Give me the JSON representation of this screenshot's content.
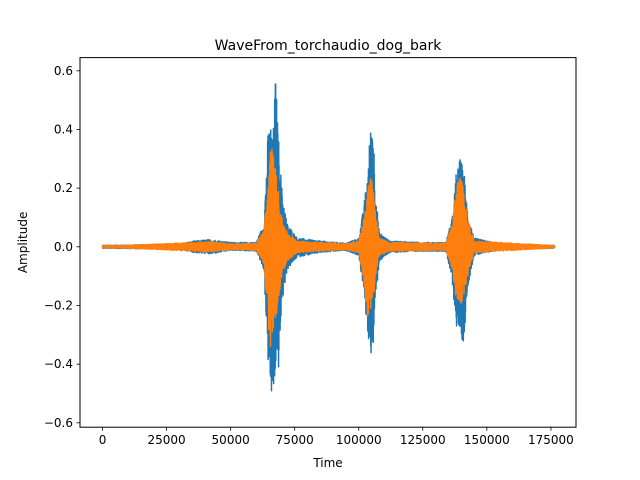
{
  "chart_data": {
    "type": "line",
    "title": "WaveFrom_torchaudio_dog_bark",
    "xlabel": "Time",
    "ylabel": "Amplitude",
    "xlim": [
      -8800,
      184800
    ],
    "ylim": [
      -0.615,
      0.645
    ],
    "xticks": [
      0,
      25000,
      50000,
      75000,
      100000,
      125000,
      150000,
      175000
    ],
    "xtick_labels": [
      "0",
      "25000",
      "50000",
      "75000",
      "100000",
      "125000",
      "150000",
      "175000"
    ],
    "yticks": [
      -0.6,
      -0.4,
      -0.2,
      0.0,
      0.2,
      0.4,
      0.6
    ],
    "ytick_labels": [
      "−0.6",
      "−0.4",
      "−0.2",
      "0.0",
      "0.2",
      "0.4",
      "0.6"
    ],
    "grid": false,
    "legend": "none",
    "n_samples": 176400,
    "series": [
      {
        "color": "#1f77b4",
        "envelope": [
          {
            "x": 0,
            "max": 0.005,
            "min": -0.005
          },
          {
            "x": 10000,
            "max": 0.006,
            "min": -0.006
          },
          {
            "x": 30000,
            "max": 0.01,
            "min": -0.008
          },
          {
            "x": 36000,
            "max": 0.02,
            "min": -0.02
          },
          {
            "x": 42000,
            "max": 0.025,
            "min": -0.025
          },
          {
            "x": 50000,
            "max": 0.015,
            "min": -0.012
          },
          {
            "x": 60000,
            "max": 0.015,
            "min": -0.015
          },
          {
            "x": 63000,
            "max": 0.08,
            "min": -0.08
          },
          {
            "x": 64500,
            "max": 0.38,
            "min": -0.38
          },
          {
            "x": 65500,
            "max": 0.43,
            "min": -0.5
          },
          {
            "x": 66500,
            "max": 0.36,
            "min": -0.55
          },
          {
            "x": 67500,
            "max": 0.59,
            "min": -0.42
          },
          {
            "x": 68500,
            "max": 0.4,
            "min": -0.45
          },
          {
            "x": 70000,
            "max": 0.2,
            "min": -0.2
          },
          {
            "x": 72000,
            "max": 0.08,
            "min": -0.08
          },
          {
            "x": 76000,
            "max": 0.03,
            "min": -0.035
          },
          {
            "x": 85000,
            "max": 0.02,
            "min": -0.02
          },
          {
            "x": 95000,
            "max": 0.012,
            "min": -0.012
          },
          {
            "x": 100000,
            "max": 0.03,
            "min": -0.03
          },
          {
            "x": 102000,
            "max": 0.14,
            "min": -0.16
          },
          {
            "x": 103500,
            "max": 0.26,
            "min": -0.3
          },
          {
            "x": 104500,
            "max": 0.4,
            "min": -0.36
          },
          {
            "x": 105500,
            "max": 0.46,
            "min": -0.37
          },
          {
            "x": 106500,
            "max": 0.2,
            "min": -0.2
          },
          {
            "x": 108000,
            "max": 0.05,
            "min": -0.05
          },
          {
            "x": 112000,
            "max": 0.02,
            "min": -0.02
          },
          {
            "x": 125000,
            "max": 0.015,
            "min": -0.015
          },
          {
            "x": 134000,
            "max": 0.015,
            "min": -0.015
          },
          {
            "x": 136500,
            "max": 0.1,
            "min": -0.12
          },
          {
            "x": 138000,
            "max": 0.25,
            "min": -0.27
          },
          {
            "x": 139500,
            "max": 0.3,
            "min": -0.3
          },
          {
            "x": 141000,
            "max": 0.27,
            "min": -0.33
          },
          {
            "x": 142500,
            "max": 0.12,
            "min": -0.14
          },
          {
            "x": 145000,
            "max": 0.03,
            "min": -0.03
          },
          {
            "x": 155000,
            "max": 0.01,
            "min": -0.01
          },
          {
            "x": 176400,
            "max": 0.005,
            "min": -0.005
          }
        ]
      },
      {
        "color": "#ff7f0e",
        "envelope": [
          {
            "x": 0,
            "max": 0.004,
            "min": -0.004
          },
          {
            "x": 10000,
            "max": 0.005,
            "min": -0.005
          },
          {
            "x": 36000,
            "max": 0.015,
            "min": -0.015
          },
          {
            "x": 42000,
            "max": 0.018,
            "min": -0.018
          },
          {
            "x": 50000,
            "max": 0.01,
            "min": -0.01
          },
          {
            "x": 60000,
            "max": 0.012,
            "min": -0.012
          },
          {
            "x": 63000,
            "max": 0.06,
            "min": -0.06
          },
          {
            "x": 64500,
            "max": 0.2,
            "min": -0.25
          },
          {
            "x": 65500,
            "max": 0.35,
            "min": -0.35
          },
          {
            "x": 66500,
            "max": 0.33,
            "min": -0.3
          },
          {
            "x": 67500,
            "max": 0.27,
            "min": -0.25
          },
          {
            "x": 68500,
            "max": 0.2,
            "min": -0.2
          },
          {
            "x": 70000,
            "max": 0.1,
            "min": -0.1
          },
          {
            "x": 72000,
            "max": 0.05,
            "min": -0.05
          },
          {
            "x": 76000,
            "max": 0.02,
            "min": -0.02
          },
          {
            "x": 95000,
            "max": 0.01,
            "min": -0.01
          },
          {
            "x": 100000,
            "max": 0.02,
            "min": -0.02
          },
          {
            "x": 102000,
            "max": 0.1,
            "min": -0.12
          },
          {
            "x": 103500,
            "max": 0.2,
            "min": -0.25
          },
          {
            "x": 104500,
            "max": 0.25,
            "min": -0.22
          },
          {
            "x": 105500,
            "max": 0.22,
            "min": -0.2
          },
          {
            "x": 106500,
            "max": 0.12,
            "min": -0.12
          },
          {
            "x": 108000,
            "max": 0.03,
            "min": -0.03
          },
          {
            "x": 112000,
            "max": 0.015,
            "min": -0.015
          },
          {
            "x": 134000,
            "max": 0.012,
            "min": -0.012
          },
          {
            "x": 136500,
            "max": 0.08,
            "min": -0.08
          },
          {
            "x": 138000,
            "max": 0.2,
            "min": -0.18
          },
          {
            "x": 139500,
            "max": 0.26,
            "min": -0.2
          },
          {
            "x": 141000,
            "max": 0.2,
            "min": -0.18
          },
          {
            "x": 142500,
            "max": 0.1,
            "min": -0.1
          },
          {
            "x": 145000,
            "max": 0.02,
            "min": -0.02
          },
          {
            "x": 176400,
            "max": 0.004,
            "min": -0.004
          }
        ]
      }
    ]
  }
}
